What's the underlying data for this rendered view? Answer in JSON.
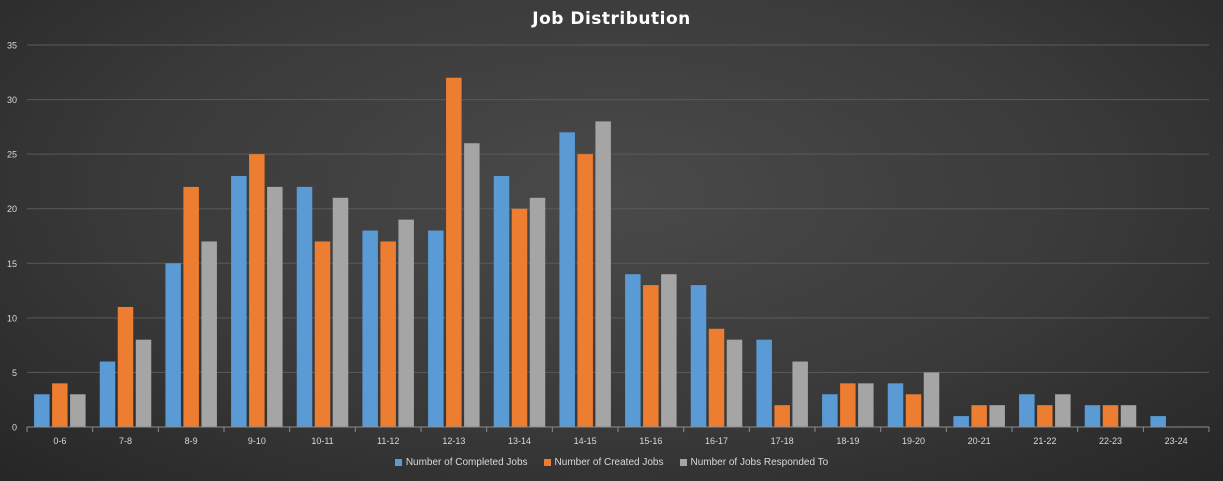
{
  "chart_data": {
    "type": "bar",
    "title": "Job Distribution",
    "xlabel": "",
    "ylabel": "",
    "ylim": [
      0,
      35
    ],
    "yticks": [
      0,
      5,
      10,
      15,
      20,
      25,
      30,
      35
    ],
    "grid": true,
    "legend_position": "bottom",
    "categories": [
      "0-6",
      "7-8",
      "8-9",
      "9-10",
      "10-11",
      "11-12",
      "12-13",
      "13-14",
      "14-15",
      "15-16",
      "16-17",
      "17-18",
      "18-19",
      "19-20",
      "20-21",
      "21-22",
      "22-23",
      "23-24"
    ],
    "series": [
      {
        "name": "Number of Completed Jobs",
        "color": "#5b9bd5",
        "values": [
          3,
          6,
          15,
          23,
          22,
          18,
          18,
          23,
          27,
          14,
          13,
          8,
          3,
          4,
          1,
          3,
          2,
          1
        ]
      },
      {
        "name": "Number of Created Jobs",
        "color": "#ed7d31",
        "values": [
          4,
          11,
          22,
          25,
          17,
          17,
          32,
          20,
          25,
          13,
          9,
          2,
          4,
          3,
          2,
          2,
          2,
          null
        ]
      },
      {
        "name": "Number of Jobs Responded To",
        "color": "#a5a5a5",
        "values": [
          3,
          8,
          17,
          22,
          21,
          19,
          26,
          21,
          28,
          14,
          8,
          6,
          4,
          5,
          2,
          3,
          2,
          null
        ]
      }
    ]
  }
}
